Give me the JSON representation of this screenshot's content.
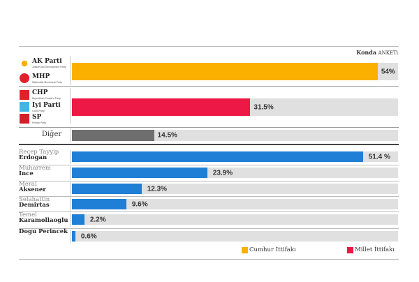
{
  "header": {
    "brand": "Konda",
    "subtitle": "ANKETi"
  },
  "chart_data": {
    "type": "bar",
    "orientation": "horizontal",
    "xlim": [
      0,
      57.6
    ],
    "alliances": [
      {
        "name": "Cumhur İttifakı",
        "parties": [
          {
            "name": "AK Parti",
            "sub": "Justice and Development Party"
          },
          {
            "name": "MHP",
            "sub": "Nationalist Movement Party"
          }
        ],
        "value": 54,
        "label": "54%",
        "color": "#fbb000"
      },
      {
        "name": "Millet İttifakı",
        "parties": [
          {
            "name": "CHP",
            "sub": "Republican People's Party"
          },
          {
            "name": "Iyi Parti",
            "sub": "Good Party"
          },
          {
            "name": "SP",
            "sub": "Felicity Party"
          }
        ],
        "value": 31.5,
        "label": "31.5%",
        "color": "#ee1846"
      },
      {
        "name": "Diğer",
        "parties": [],
        "value": 14.5,
        "label": "14.5%",
        "color": "#6e6e6e"
      }
    ],
    "candidates": [
      {
        "first": "Recep Tayyip",
        "last": "Erdogan",
        "value": 51.4,
        "label": "51.4 %"
      },
      {
        "first": "Muharrem",
        "last": "Ince",
        "value": 23.9,
        "label": "23.9%"
      },
      {
        "first": "Meral",
        "last": "Aksener",
        "value": 12.3,
        "label": "12.3%"
      },
      {
        "first": "Selahattin",
        "last": "Demirtas",
        "value": 9.6,
        "label": "9.6%"
      },
      {
        "first": "Temel",
        "last": "Karamollaoglu",
        "value": 2.2,
        "label": "2.2%"
      },
      {
        "first": "",
        "last": "Dogu Perincek",
        "value": 0.6,
        "label": "0.6%"
      }
    ],
    "candidate_color": "#1f7fd6",
    "legend": [
      {
        "label": "Cumhur İttifakı",
        "color": "#fbb000"
      },
      {
        "label": "Millet İttifakı",
        "color": "#ee1846"
      }
    ]
  }
}
